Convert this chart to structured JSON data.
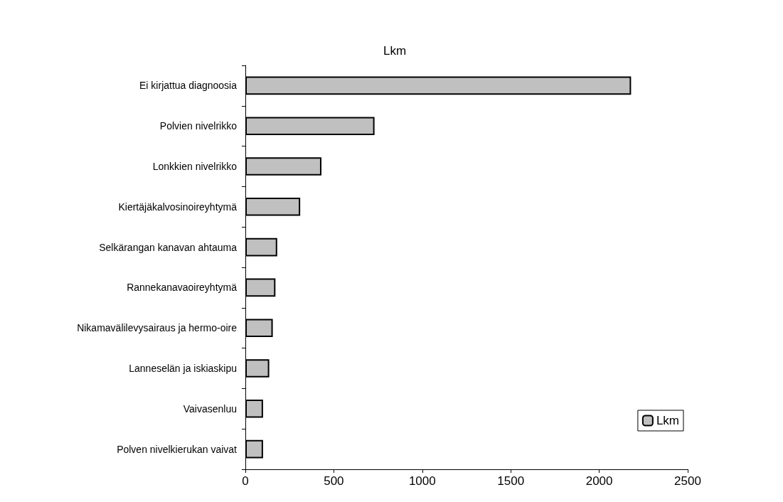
{
  "chart_data": {
    "type": "bar",
    "orientation": "horizontal",
    "title": "Lkm",
    "categories": [
      "Ei kirjattua diagnoosia",
      "Polvien nivelrikko",
      "Lonkkien nivelrikko",
      "Kiertäjäkalvosinoireyhtymä",
      "Selkärangan kanavan ahtauma",
      "Rannekanavaoireyhtymä",
      "Nikamavälilevysairaus ja hermo-oire",
      "Lanneselän ja iskiaskipu",
      "Vaivasenluu",
      "Polven nivelkierukan vaivat"
    ],
    "series": [
      {
        "name": "Lkm",
        "color": "#c0c0c0",
        "values": [
          2180,
          730,
          430,
          310,
          180,
          170,
          155,
          135,
          100,
          100
        ]
      }
    ],
    "xlim": [
      0,
      2500
    ],
    "xticks": [
      0,
      500,
      1000,
      1500,
      2000,
      2500
    ],
    "grid": false,
    "legend": "bottom right"
  }
}
